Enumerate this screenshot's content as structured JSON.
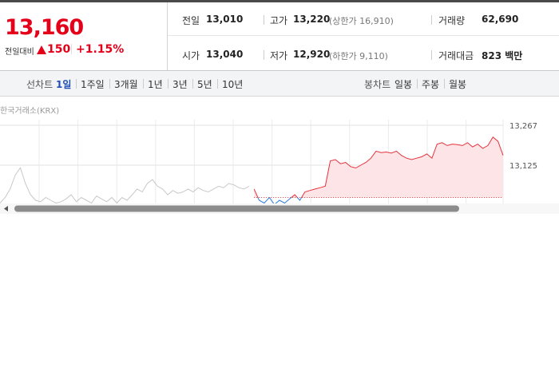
{
  "quote": {
    "price": "13,160",
    "change_label": "전일대비",
    "change": "150",
    "change_pct": "+1.15%"
  },
  "stats": [
    {
      "label": "전일",
      "value": "13,010"
    },
    {
      "label": "고가",
      "value": "13,220",
      "sub": "(상한가 16,910)"
    },
    {
      "label": "거래량",
      "value": "62,690"
    },
    {
      "label": "시가",
      "value": "13,040"
    },
    {
      "label": "저가",
      "value": "12,920",
      "sub": "(하한가 9,110)"
    },
    {
      "label": "거래대금",
      "value": "823 백만"
    }
  ],
  "tabs": {
    "line_label": "선차트",
    "line": [
      "1일",
      "1주일",
      "3개월",
      "1년",
      "3년",
      "5년",
      "10년"
    ],
    "candle_label": "봉차트",
    "candle": [
      "일봉",
      "주봉",
      "월봉"
    ]
  },
  "source": "한국거래소(KRX)",
  "chart_data": {
    "type": "line",
    "ylim": [
      12983,
      13267
    ],
    "yticks": [
      {
        "value": 13267,
        "label": "13,267"
      },
      {
        "value": 13125,
        "label": "13,125"
      }
    ],
    "baseline": 13010,
    "grid": true,
    "series": [
      {
        "color": "#c8c8c8",
        "values": [
          12990,
          13010,
          13040,
          13090,
          13116,
          13060,
          13020,
          13000,
          12995,
          13010,
          13000,
          12990,
          12995,
          13005,
          13020,
          12995,
          13010,
          13000,
          12990,
          13015,
          13005,
          12995,
          13010,
          12990,
          13010,
          13000,
          13020,
          13040,
          13030,
          13060,
          13074,
          13050,
          13040,
          13020,
          13035,
          13025,
          13030,
          13040,
          13030,
          13045,
          13035,
          13030,
          13040,
          13050,
          13045,
          13060,
          13055,
          13045,
          13040,
          13050,
          null,
          null,
          null,
          null,
          null,
          null,
          null,
          null,
          null,
          null,
          null,
          null,
          null,
          null,
          null,
          null,
          null,
          null,
          null,
          null,
          null,
          null,
          null,
          null,
          null,
          null,
          null,
          null,
          null,
          null,
          null,
          null,
          null,
          null,
          null,
          null,
          null,
          null,
          null,
          null,
          null,
          null,
          null,
          null,
          null,
          null,
          null,
          null,
          null,
          null
        ]
      },
      {
        "color": "#e5323c",
        "values": [
          null,
          null,
          null,
          null,
          null,
          null,
          null,
          null,
          null,
          null,
          null,
          null,
          null,
          null,
          null,
          null,
          null,
          null,
          null,
          null,
          null,
          null,
          null,
          null,
          null,
          null,
          null,
          null,
          null,
          null,
          null,
          null,
          null,
          null,
          null,
          null,
          null,
          null,
          null,
          null,
          null,
          null,
          null,
          null,
          null,
          null,
          null,
          null,
          null,
          null,
          13040,
          13000,
          12990,
          13010,
          12985,
          13000,
          12990,
          13005,
          13020,
          13000,
          13030,
          13035,
          13040,
          13045,
          13050,
          13140,
          13145,
          13130,
          13135,
          13120,
          13115,
          13125,
          13135,
          13150,
          13175,
          13170,
          13172,
          13168,
          13175,
          13160,
          13150,
          13145,
          13150,
          13155,
          13165,
          13150,
          13200,
          13205,
          13195,
          13200,
          13198,
          13195,
          13205,
          13190,
          13200,
          13185,
          13195,
          13225,
          13210,
          13160
        ]
      }
    ]
  }
}
